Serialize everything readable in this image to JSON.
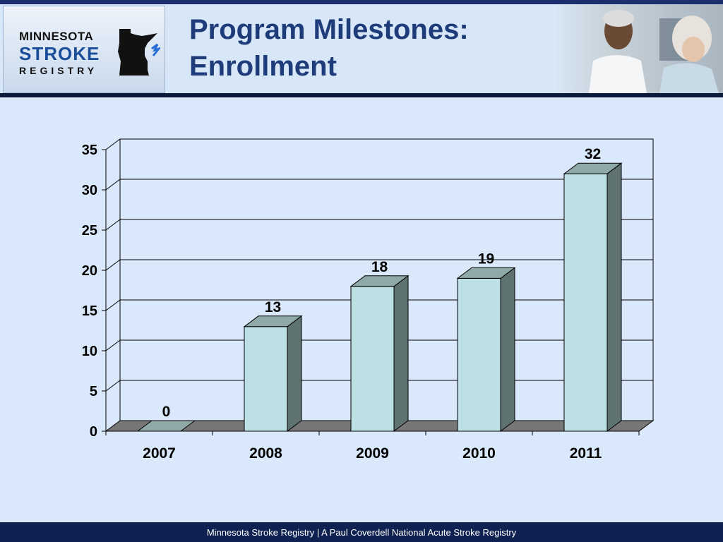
{
  "header": {
    "title_line1": "Program Milestones:",
    "title_line2": "Enrollment",
    "logo": {
      "line1": "MINNESOTA",
      "line2": "STROKE",
      "line3": "REGISTRY"
    }
  },
  "footer": {
    "text": "Minnesota Stroke Registry | A Paul Coverdell National Acute Stroke Registry"
  },
  "colors": {
    "bar_front": "#bde0e4",
    "bar_side": "#5f7272",
    "bar_top": "#8fa9a9",
    "floor": "#777777",
    "header_bg": "#d8e7f7",
    "title": "#1e3c7a",
    "footer_bg": "#0e2150"
  },
  "chart_data": {
    "type": "bar",
    "title": "",
    "xlabel": "",
    "ylabel": "",
    "categories": [
      "2007",
      "2008",
      "2009",
      "2010",
      "2011"
    ],
    "values": [
      0,
      13,
      18,
      19,
      32
    ],
    "ylim": [
      0,
      35
    ],
    "yticks": [
      0,
      5,
      10,
      15,
      20,
      25,
      30,
      35
    ],
    "grid": true,
    "legend": "none",
    "style": "3d-column"
  }
}
